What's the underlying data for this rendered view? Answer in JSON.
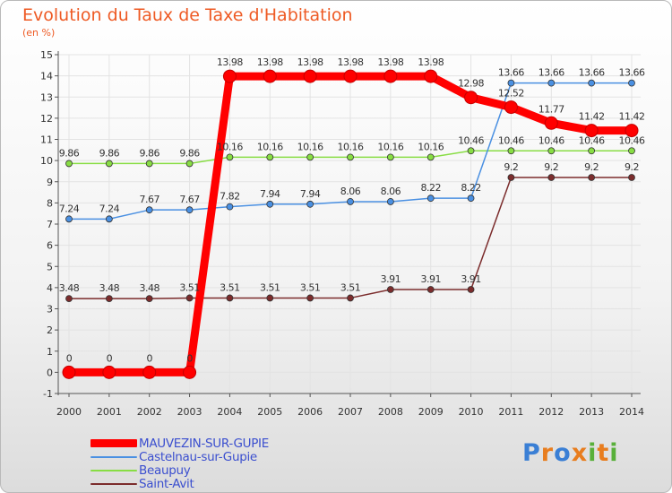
{
  "chart_data": {
    "type": "line",
    "title": "Evolution du Taux de Taxe d'Habitation",
    "subtitle": "(en %)",
    "categories": [
      "2000",
      "2001",
      "2002",
      "2003",
      "2004",
      "2005",
      "2006",
      "2007",
      "2008",
      "2009",
      "2010",
      "2011",
      "2012",
      "2013",
      "2014"
    ],
    "ylim": [
      -1,
      15
    ],
    "yticks": [
      "-1",
      "0",
      "1",
      "2",
      "3",
      "4",
      "5",
      "6",
      "7",
      "8",
      "9",
      "10",
      "11",
      "12",
      "13",
      "14",
      "15"
    ],
    "grid": true,
    "series": [
      {
        "name": "MAUVEZIN-SUR-GUPIE",
        "color": "#ff0000",
        "values": [
          0,
          0,
          0,
          0,
          13.98,
          13.98,
          13.98,
          13.98,
          13.98,
          13.98,
          12.98,
          12.52,
          11.77,
          11.42,
          11.42
        ],
        "labels": [
          "0",
          "0",
          "0",
          "0",
          "13.98",
          "13.98",
          "13.98",
          "13.98",
          "13.98",
          "13.98",
          "12.98",
          "12.52",
          "11.77",
          "11.42",
          "11.42"
        ]
      },
      {
        "name": "Castelnau-sur-Gupie",
        "color": "#4a90e2",
        "values": [
          7.24,
          7.24,
          7.67,
          7.67,
          7.82,
          7.94,
          7.94,
          8.06,
          8.06,
          8.22,
          8.22,
          13.66,
          13.66,
          13.66,
          13.66
        ],
        "labels": [
          "7.24",
          "7.24",
          "7.67",
          "7.67",
          "7.82",
          "7.94",
          "7.94",
          "8.06",
          "8.06",
          "8.22",
          "8.22",
          "13.66",
          "13.66",
          "13.66",
          "13.66"
        ]
      },
      {
        "name": "Beaupuy",
        "color": "#88dd44",
        "values": [
          9.86,
          9.86,
          9.86,
          9.86,
          10.16,
          10.16,
          10.16,
          10.16,
          10.16,
          10.16,
          10.46,
          10.46,
          10.46,
          10.46,
          10.46
        ],
        "labels": [
          "9.86",
          "9.86",
          "9.86",
          "9.86",
          "10.16",
          "10.16",
          "10.16",
          "10.16",
          "10.16",
          "10.16",
          "10.46",
          "10.46",
          "10.46",
          "10.46",
          "10.46"
        ]
      },
      {
        "name": "Saint-Avit",
        "color": "#7b2c2c",
        "values": [
          3.48,
          3.48,
          3.48,
          3.51,
          3.51,
          3.51,
          3.51,
          3.51,
          3.91,
          3.91,
          3.91,
          9.2,
          9.2,
          9.2,
          9.2
        ],
        "labels": [
          "3.48",
          "3.48",
          "3.48",
          "3.51",
          "3.51",
          "3.51",
          "3.51",
          "3.51",
          "3.91",
          "3.91",
          "3.91",
          "9.2",
          "9.2",
          "9.2",
          "9.2"
        ]
      }
    ]
  },
  "logo": {
    "text": "Proxiti"
  }
}
